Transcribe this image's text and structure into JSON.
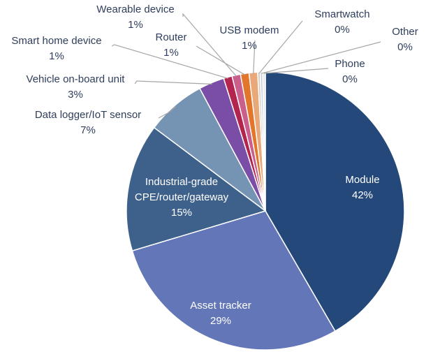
{
  "chart_data": {
    "type": "pie",
    "title": "",
    "slices": [
      {
        "label": "Module",
        "value": 42,
        "value_label": "42%",
        "color": "#24487a"
      },
      {
        "label": "Asset tracker",
        "value": 29,
        "value_label": "29%",
        "color": "#6376b8"
      },
      {
        "label": "Industrial-grade CPE/router/gateway",
        "label_lines": [
          "Industrial-grade",
          "CPE/router/gateway"
        ],
        "value": 15,
        "value_label": "15%",
        "color": "#3e618c"
      },
      {
        "label": "Data logger/IoT sensor",
        "value": 7,
        "value_label": "7%",
        "color": "#7593b3"
      },
      {
        "label": "Vehicle on-board unit",
        "value": 3,
        "value_label": "3%",
        "color": "#7a4ea6"
      },
      {
        "label": "Smart home device",
        "value": 1,
        "value_label": "1%",
        "color": "#b3254f"
      },
      {
        "label": "Wearable device",
        "value": 1,
        "value_label": "1%",
        "color": "#c95f8a"
      },
      {
        "label": "Router",
        "value": 1,
        "value_label": "1%",
        "color": "#e2762b"
      },
      {
        "label": "USB modem",
        "value": 1,
        "value_label": "1%",
        "color": "#e8a87a"
      },
      {
        "label": "Smartwatch",
        "value": 0.3,
        "value_label": "0%",
        "color": "#d9ccb9"
      },
      {
        "label": "Other",
        "value": 0.3,
        "value_label": "0%",
        "color": "#c7d3e3"
      },
      {
        "label": "Phone",
        "value": 0.3,
        "value_label": "0%",
        "color": "#e6e6e6"
      }
    ],
    "start_angle": "12 o'clock",
    "direction": "clockwise",
    "legend": "none"
  }
}
